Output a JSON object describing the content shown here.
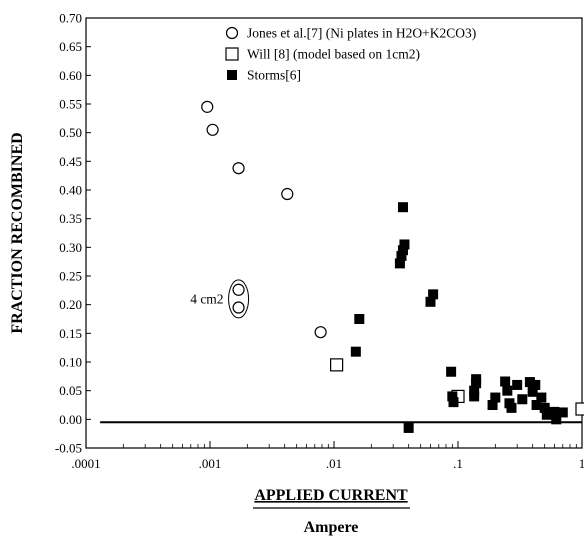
{
  "chart_data": {
    "type": "scatter",
    "title": "",
    "xlabel": "APPLIED CURRENT",
    "xunit": "Ampere",
    "ylabel": "FRACTION RECOMBINED",
    "xscale": "log",
    "xlim": [
      0.0001,
      1
    ],
    "ylim": [
      -0.05,
      0.7
    ],
    "x_tick_values": [
      0.0001,
      0.001,
      0.01,
      0.1,
      1
    ],
    "x_tick_labels": [
      ".0001",
      ".001",
      ".01",
      ".1",
      "1"
    ],
    "y_tick_values": [
      0.7,
      0.65,
      0.6,
      0.55,
      0.5,
      0.45,
      0.4,
      0.35,
      0.3,
      0.25,
      0.2,
      0.15,
      0.1,
      0.05,
      0.0,
      -0.05
    ],
    "y_tick_labels": [
      "0.70",
      "0.65",
      "0.60",
      "0.55",
      "0.50",
      "0.45",
      "0.40",
      "0.35",
      "0.30",
      "0.25",
      "0.20",
      "0.15",
      "0.10",
      "0.05",
      "0.00",
      "-0.05"
    ],
    "grid": false,
    "legend_position": "top-right",
    "reference_line": {
      "y": -0.005,
      "from_x": 0.00013,
      "to_x": 1
    },
    "annotation": {
      "text": "4 cm2",
      "x": 0.0017,
      "y": 0.21
    },
    "series": [
      {
        "name": "Jones et al.[7] (Ni plates in H2O+K2CO3)",
        "marker": "open-circle",
        "color": "#000000",
        "points": [
          {
            "x": 0.00095,
            "y": 0.545
          },
          {
            "x": 0.00105,
            "y": 0.505
          },
          {
            "x": 0.0017,
            "y": 0.438
          },
          {
            "x": 0.0042,
            "y": 0.393
          },
          {
            "x": 0.0017,
            "y": 0.226
          },
          {
            "x": 0.0017,
            "y": 0.195
          },
          {
            "x": 0.0078,
            "y": 0.152
          }
        ]
      },
      {
        "name": "Will [8] (model based on 1cm2)",
        "marker": "open-square",
        "color": "#000000",
        "points": [
          {
            "x": 0.0105,
            "y": 0.095
          },
          {
            "x": 0.1,
            "y": 0.04
          },
          {
            "x": 1.0,
            "y": 0.018
          }
        ]
      },
      {
        "name": "Storms[6]",
        "marker": "filled-square",
        "color": "#000000",
        "points": [
          {
            "x": 0.036,
            "y": 0.37
          },
          {
            "x": 0.037,
            "y": 0.305
          },
          {
            "x": 0.036,
            "y": 0.295
          },
          {
            "x": 0.035,
            "y": 0.285
          },
          {
            "x": 0.034,
            "y": 0.272
          },
          {
            "x": 0.063,
            "y": 0.218
          },
          {
            "x": 0.06,
            "y": 0.205
          },
          {
            "x": 0.016,
            "y": 0.175
          },
          {
            "x": 0.015,
            "y": 0.118
          },
          {
            "x": 0.04,
            "y": -0.015
          },
          {
            "x": 0.088,
            "y": 0.083
          },
          {
            "x": 0.09,
            "y": 0.04
          },
          {
            "x": 0.092,
            "y": 0.03
          },
          {
            "x": 0.14,
            "y": 0.07
          },
          {
            "x": 0.14,
            "y": 0.063
          },
          {
            "x": 0.135,
            "y": 0.05
          },
          {
            "x": 0.135,
            "y": 0.04
          },
          {
            "x": 0.2,
            "y": 0.038
          },
          {
            "x": 0.19,
            "y": 0.025
          },
          {
            "x": 0.24,
            "y": 0.066
          },
          {
            "x": 0.25,
            "y": 0.05
          },
          {
            "x": 0.26,
            "y": 0.028
          },
          {
            "x": 0.27,
            "y": 0.02
          },
          {
            "x": 0.3,
            "y": 0.06
          },
          {
            "x": 0.33,
            "y": 0.035
          },
          {
            "x": 0.38,
            "y": 0.065
          },
          {
            "x": 0.42,
            "y": 0.06
          },
          {
            "x": 0.4,
            "y": 0.048
          },
          {
            "x": 0.43,
            "y": 0.025
          },
          {
            "x": 0.47,
            "y": 0.038
          },
          {
            "x": 0.5,
            "y": 0.02
          },
          {
            "x": 0.52,
            "y": 0.008
          },
          {
            "x": 0.6,
            "y": 0.013
          },
          {
            "x": 0.62,
            "y": 0.0
          },
          {
            "x": 0.7,
            "y": 0.012
          }
        ]
      }
    ]
  }
}
